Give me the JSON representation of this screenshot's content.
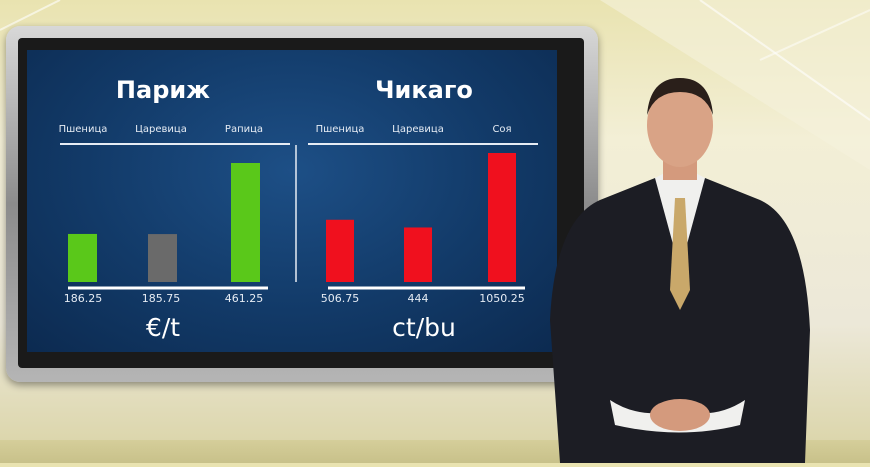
{
  "chart_data": [
    {
      "type": "bar",
      "title": "Париж",
      "categories": [
        "Пшеница",
        "Царевица",
        "Рапица"
      ],
      "values": [
        186.25,
        185.75,
        461.25
      ],
      "value_labels": [
        "186.25",
        "185.75",
        "461.25"
      ],
      "colors": [
        "#5ac81a",
        "#6a6a6a",
        "#5ac81a"
      ],
      "unit": "€/t",
      "grid": false
    },
    {
      "type": "bar",
      "title": "Чикаго",
      "categories": [
        "Пшеница",
        "Царевица",
        "Соя"
      ],
      "values": [
        506.75,
        444,
        1050.25
      ],
      "value_labels": [
        "506.75",
        "444",
        "1050.25"
      ],
      "colors": [
        "#f0101e",
        "#f0101e",
        "#f0101e"
      ],
      "unit": "ct/bu",
      "grid": false
    }
  ]
}
